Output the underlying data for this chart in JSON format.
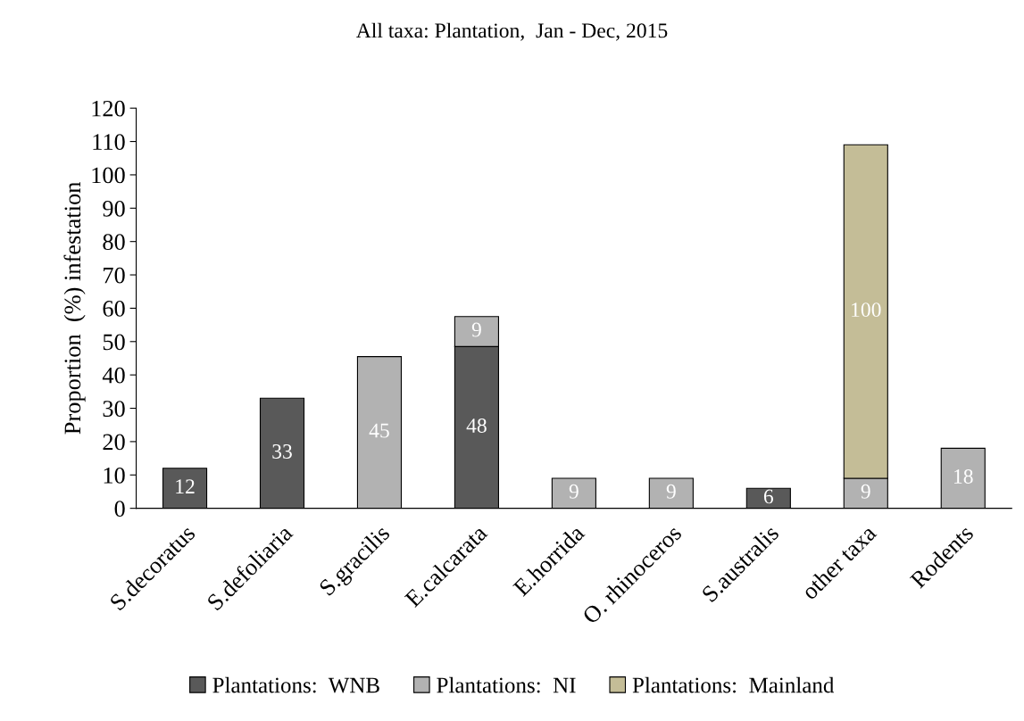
{
  "chart_data": {
    "type": "bar",
    "title": "All taxa: Plantation,  Jan - Dec, 2015",
    "ylabel": "Proportion  (%) infestation",
    "categories": [
      "S.decoratus",
      "S.defoliaria",
      "S.gracilis",
      "E.calcarata",
      "E.horrida",
      "O. rhinoceros",
      "S.australis",
      "other taxa",
      "Rodents"
    ],
    "stacked": true,
    "series": [
      {
        "name": "Plantations:  WNB",
        "color": "#595959",
        "values": [
          12,
          33,
          null,
          48.5,
          null,
          null,
          6,
          null,
          null
        ],
        "value_labels": [
          "12",
          "33",
          null,
          "48",
          null,
          null,
          "6",
          null,
          null
        ]
      },
      {
        "name": "Plantations:  NI",
        "color": "#b2b2b2",
        "values": [
          null,
          null,
          45.5,
          9,
          9,
          9,
          null,
          9,
          18
        ],
        "value_labels": [
          null,
          null,
          "45",
          "9",
          "9",
          "9",
          null,
          "9",
          "18"
        ]
      },
      {
        "name": "Plantations:  Mainland",
        "color": "#c4bd97",
        "values": [
          null,
          null,
          null,
          null,
          null,
          null,
          null,
          100,
          null
        ],
        "value_labels": [
          null,
          null,
          null,
          null,
          null,
          null,
          null,
          "100",
          null
        ]
      }
    ],
    "ylim": [
      0,
      120
    ],
    "yticks": [
      0,
      10,
      20,
      30,
      40,
      50,
      60,
      70,
      80,
      90,
      100,
      110,
      120
    ],
    "grid": false,
    "legend": "bottom"
  }
}
